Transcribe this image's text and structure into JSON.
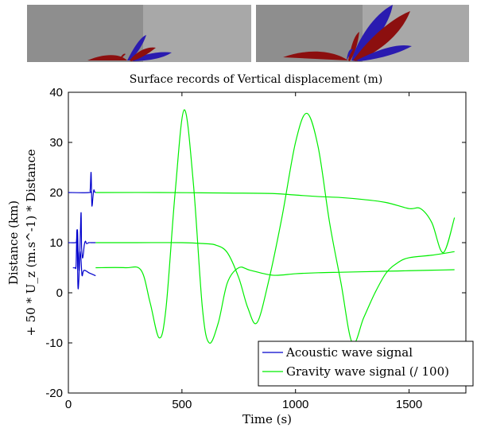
{
  "chart_data": {
    "type": "line",
    "title": "Surface records of Vertical displacement (m)",
    "xlabel": "Time (s)",
    "ylabel_line1": "Distance (km)",
    "ylabel_line2": "+ 50 * U_z (m.s^-1) * Distance",
    "xlim": [
      0,
      1750
    ],
    "ylim": [
      -20,
      40
    ],
    "xticks": [
      0,
      500,
      1000,
      1500
    ],
    "yticks": [
      -20,
      -10,
      0,
      10,
      20,
      30,
      40
    ],
    "xtick_labels": [
      "0",
      "500",
      "1000",
      "1500"
    ],
    "ytick_labels": [
      "-20",
      "-10",
      "0",
      "10",
      "20",
      "30",
      "40"
    ],
    "grid": false,
    "legend_position": "bottom-right",
    "series": [
      {
        "name": "Acoustic wave signal",
        "color": "#0000cc",
        "x": [
          0,
          90,
          96,
          100,
          103,
          105,
          108,
          112,
          116,
          120
        ],
        "y": [
          20,
          20,
          20.5,
          24,
          18,
          17.5,
          19,
          20.5,
          20.1,
          20
        ]
      },
      {
        "name": "",
        "color": "#0000cc",
        "x": [
          0,
          30,
          36,
          40,
          44,
          48,
          52,
          56,
          58,
          62,
          66,
          70,
          75,
          80,
          90,
          100,
          110,
          120
        ],
        "y": [
          10,
          10,
          10.3,
          12.5,
          7,
          4.5,
          10.5,
          16,
          9.5,
          7,
          7.8,
          9.5,
          10.3,
          9.8,
          10,
          10,
          10,
          10
        ]
      },
      {
        "name": "",
        "color": "#0000cc",
        "x": [
          20,
          30,
          34,
          38,
          42,
          46,
          50,
          55,
          60,
          65,
          70,
          80,
          90,
          100,
          110,
          120
        ],
        "y": [
          5,
          5,
          5.5,
          12.5,
          1.5,
          2.5,
          8,
          7,
          3.5,
          4.2,
          4.5,
          4.3,
          4.0,
          3.8,
          3.6,
          3.4
        ]
      },
      {
        "name": "Gravity wave signal (/ 100)",
        "color": "#00ee00",
        "x": [
          120,
          400,
          700,
          900,
          1000,
          1100,
          1200,
          1300,
          1400,
          1500,
          1550,
          1600,
          1650,
          1700
        ],
        "y": [
          20,
          20,
          19.9,
          19.8,
          19.5,
          19.2,
          19.0,
          18.6,
          18.0,
          16.8,
          16.8,
          14,
          8,
          15
        ]
      },
      {
        "name": "",
        "color": "#00ee00",
        "x": [
          120,
          300,
          500,
          600,
          650,
          700,
          750,
          790,
          830,
          880,
          940,
          1000,
          1050,
          1100,
          1150,
          1200,
          1250,
          1300,
          1350,
          1400,
          1450,
          1500,
          1600,
          1700
        ],
        "y": [
          10,
          10,
          10,
          9.8,
          9.5,
          8,
          3,
          -3,
          -6,
          2,
          15,
          30,
          35.8,
          29,
          14,
          2,
          -10,
          -5,
          0,
          4,
          6,
          7,
          7.5,
          8.2
        ]
      },
      {
        "name": "",
        "color": "#00ee00",
        "x": [
          120,
          250,
          320,
          360,
          400,
          430,
          470,
          510,
          550,
          590,
          620,
          660,
          700,
          750,
          800,
          900,
          1000,
          1100,
          1200,
          1300,
          1400,
          1500,
          1600,
          1700
        ],
        "y": [
          5,
          5,
          4.5,
          -2,
          -9,
          -3,
          20,
          36.5,
          22,
          -3,
          -10,
          -6,
          2,
          5,
          4.5,
          3.5,
          3.8,
          4.0,
          4.1,
          4.2,
          4.3,
          4.4,
          4.5,
          4.6
        ]
      }
    ]
  },
  "colors": {
    "acoustic": "#0000cc",
    "gravity": "#00ee00",
    "blue_lobe": "#2a1bb0",
    "red_lobe": "#8c0f0f"
  }
}
